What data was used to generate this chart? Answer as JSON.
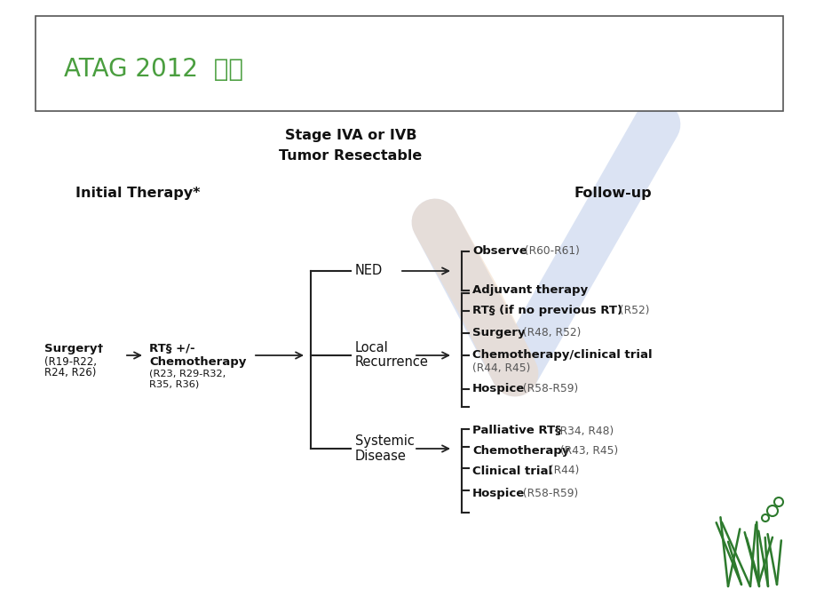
{
  "title": "ATAG 2012  指南",
  "title_color": "#4a9e3f",
  "bg_color": "#ffffff",
  "stage_line1": "Stage IVA or IVB",
  "stage_line2": "Tumor Resectable",
  "initial_therapy_label": "Initial Therapy*",
  "followup_label": "Follow-up",
  "surgery_bold": "Surgery†",
  "surgery_ref": "(R19-R22,\nR24, R26)",
  "rt_bold1": "RT§ +/-",
  "rt_bold2": "Chemotherapy",
  "rt_ref": "(R23, R29-R32,\nR35, R36)",
  "ned_label": "NED",
  "local_label1": "Local",
  "local_label2": "Recurrence",
  "systemic_label1": "Systemic",
  "systemic_label2": "Disease",
  "ned_opt1_bold": "Observe",
  "ned_opt1_ref": " (R60-R61)",
  "ned_opt2": "Adjuvant therapy",
  "lr_opt1_bold": "RT§ (if no previous RT)",
  "lr_opt1_ref": " (R52)",
  "lr_opt2_bold": "Surgery",
  "lr_opt2_ref": " (R48, R52)",
  "lr_opt3_bold": "Chemotherapy/clinical trial",
  "lr_opt3_ref": "(R44, R45)",
  "lr_opt4_bold": "Hospice",
  "lr_opt4_ref": " (R58-R59)",
  "sys_opt1_bold": "Palliative RT§",
  "sys_opt1_ref": " (R34, R48)",
  "sys_opt2_bold": "Chemotherapy",
  "sys_opt2_ref": " (R43, R45)",
  "sys_opt3_bold": "Clinical trial",
  "sys_opt3_ref": " (R44)",
  "sys_opt4_bold": "Hospice",
  "sys_opt4_ref": " (R58-R59)"
}
